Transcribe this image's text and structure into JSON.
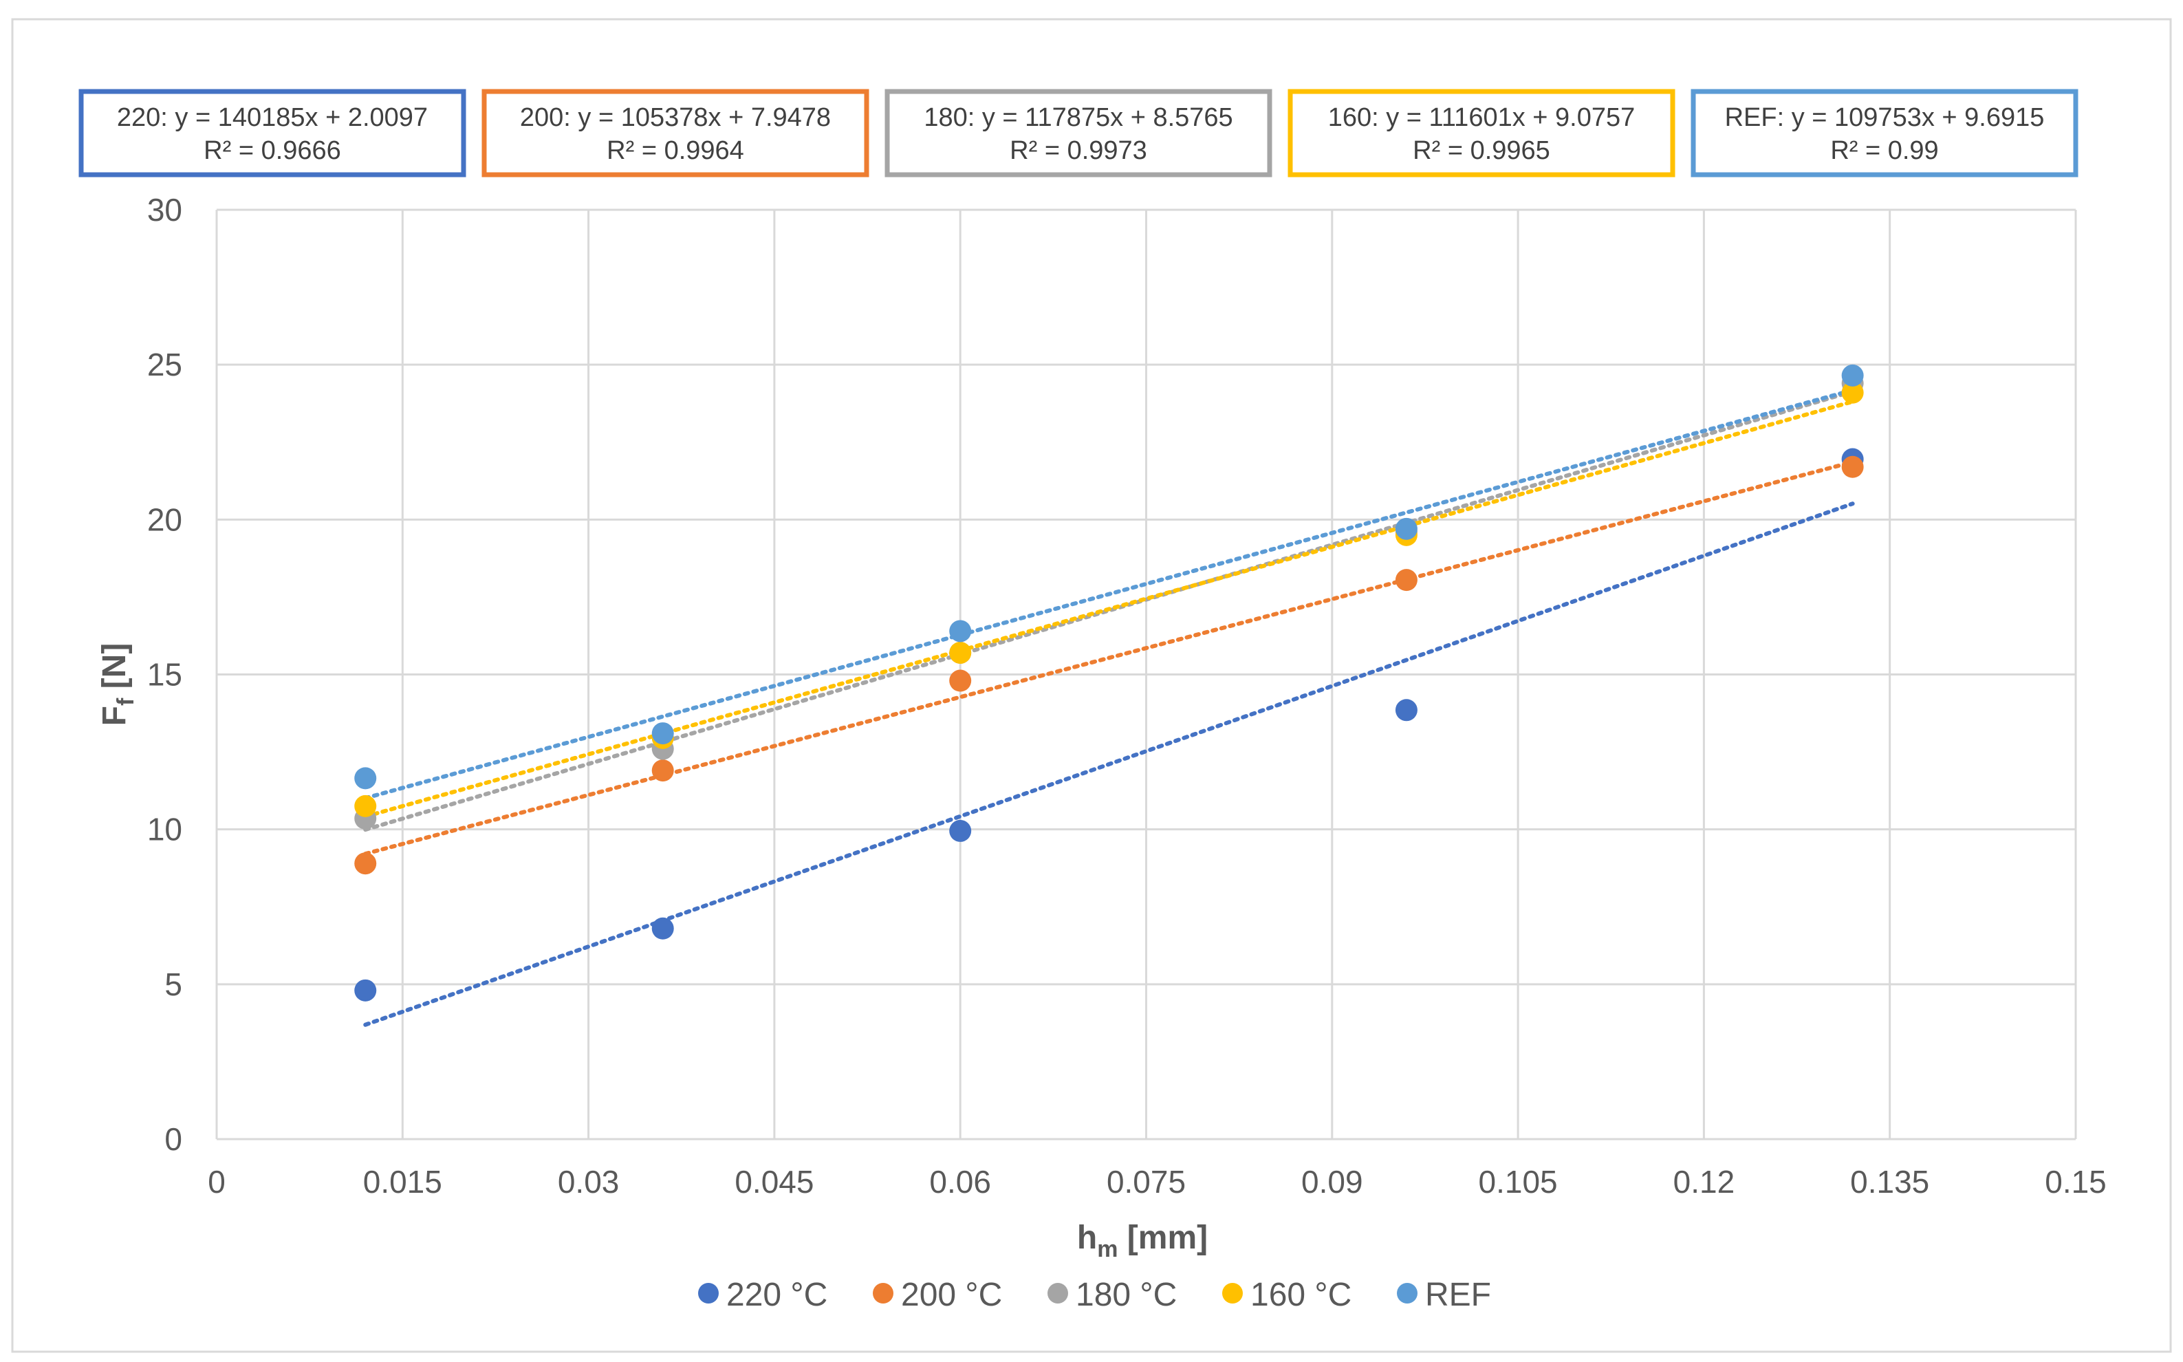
{
  "chart_data": {
    "type": "scatter",
    "xlabel": "h",
    "xlabel_sub": "m",
    "xlabel_unit": " [mm]",
    "ylabel": "F",
    "ylabel_sub": "f",
    "ylabel_unit": " [N]",
    "xlim": [
      0,
      0.15
    ],
    "ylim": [
      0,
      30
    ],
    "x_ticks": [
      0,
      0.015,
      0.03,
      0.045,
      0.06,
      0.075,
      0.09,
      0.105,
      0.12,
      0.135,
      0.15
    ],
    "x_tick_labels": [
      "0",
      "0.015",
      "0.03",
      "0.045",
      "0.06",
      "0.075",
      "0.09",
      "0.105",
      "0.12",
      "0.135",
      "0.15"
    ],
    "y_ticks": [
      0,
      5,
      10,
      15,
      20,
      25,
      30
    ],
    "y_tick_labels": [
      "0",
      "5",
      "10",
      "15",
      "20",
      "25",
      "30"
    ],
    "grid": true,
    "legend_position": "bottom",
    "series": [
      {
        "name": "220 °C",
        "color": "#4472C4",
        "x": [
          0.012,
          0.036,
          0.06,
          0.096,
          0.132
        ],
        "y": [
          4.8,
          6.8,
          9.95,
          13.85,
          21.95
        ],
        "trend": {
          "slope": 140185,
          "intercept": 2.0097
        },
        "equation": "220: y = 140185x + 2.0097",
        "r2": "R² = 0.9666"
      },
      {
        "name": "200 °C",
        "color": "#ED7D31",
        "x": [
          0.012,
          0.036,
          0.06,
          0.096,
          0.132
        ],
        "y": [
          8.9,
          11.9,
          14.8,
          18.05,
          21.7
        ],
        "trend": {
          "slope": 105378,
          "intercept": 7.9478
        },
        "equation": "200: y = 105378x + 7.9478",
        "r2": "R² = 0.9964"
      },
      {
        "name": "180 °C",
        "color": "#A5A5A5",
        "x": [
          0.012,
          0.036,
          0.06,
          0.096,
          0.132
        ],
        "y": [
          10.35,
          12.6,
          15.7,
          19.6,
          24.4
        ],
        "trend": {
          "slope": 117875,
          "intercept": 8.5765
        },
        "equation": "180: y = 117875x + 8.5765",
        "r2": "R² = 0.9973"
      },
      {
        "name": "160 °C",
        "color": "#FFC000",
        "x": [
          0.012,
          0.036,
          0.06,
          0.096,
          0.132
        ],
        "y": [
          10.75,
          12.95,
          15.7,
          19.5,
          24.1
        ],
        "trend": {
          "slope": 111601,
          "intercept": 9.0757
        },
        "equation": "160: y = 111601x + 9.0757",
        "r2": "R² = 0.9965"
      },
      {
        "name": "REF",
        "color": "#5B9BD5",
        "x": [
          0.012,
          0.036,
          0.06,
          0.096,
          0.132
        ],
        "y": [
          11.65,
          13.1,
          16.4,
          19.7,
          24.65
        ],
        "trend": {
          "slope": 109753,
          "intercept": 9.6915
        },
        "equation": "REF: y = 109753x + 9.6915",
        "r2": "R² = 0.99"
      }
    ]
  }
}
